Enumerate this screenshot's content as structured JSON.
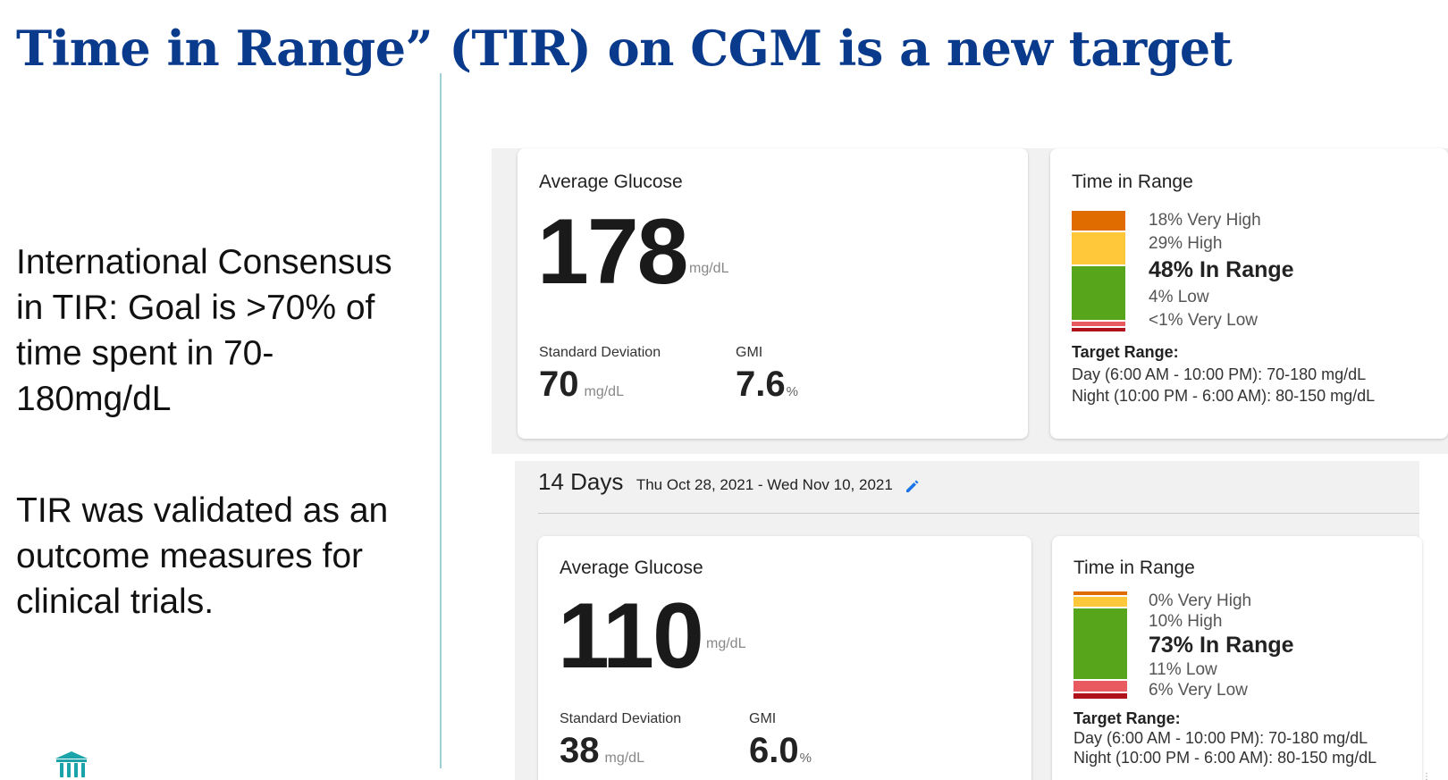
{
  "slide": {
    "title": "Time in Range” (TIR) on CGM is a new target",
    "bullets": [
      "International Consensus in TIR: Goal is >70% of time spent in 70-180mg/dL",
      "TIR was validated as an outcome measures for clinical trials."
    ],
    "logo_icon": "institution-icon"
  },
  "colors": {
    "title": "#0a3a8c",
    "very_high": "#e06c00",
    "high": "#fec83a",
    "in_range": "#57a51a",
    "low": "#e85a5f",
    "very_low": "#b0121b",
    "edit_icon": "#1a73e8"
  },
  "report_top": {
    "avg_card": {
      "title": "Average Glucose",
      "value": "178",
      "unit": "mg/dL",
      "sd_label": "Standard Deviation",
      "sd_value": "70",
      "sd_unit": "mg/dL",
      "gmi_label": "GMI",
      "gmi_value": "7.6",
      "gmi_unit": "%"
    },
    "tir_card": {
      "title": "Time in Range",
      "segments": [
        {
          "key": "very_high",
          "label": "18% Very High",
          "percent": 18
        },
        {
          "key": "high",
          "label": "29% High",
          "percent": 29
        },
        {
          "key": "in_range",
          "label": "48% In Range",
          "percent": 48
        },
        {
          "key": "low",
          "label": "4% Low",
          "percent": 4
        },
        {
          "key": "very_low",
          "label": "<1% Very Low",
          "percent": 1
        }
      ],
      "target_title": "Target Range:",
      "target_day": "Day (6:00 AM - 10:00 PM): 70-180 mg/dL",
      "target_night": "Night (10:00 PM - 6:00 AM): 80-150 mg/dL"
    }
  },
  "date_range": {
    "days": "14 Days",
    "dates": "Thu Oct 28, 2021 - Wed Nov 10, 2021",
    "edit_icon": "pencil-icon"
  },
  "report_bottom": {
    "avg_card": {
      "title": "Average Glucose",
      "value": "110",
      "unit": "mg/dL",
      "sd_label": "Standard Deviation",
      "sd_value": "38",
      "sd_unit": "mg/dL",
      "gmi_label": "GMI",
      "gmi_value": "6.0",
      "gmi_unit": "%"
    },
    "tir_card": {
      "title": "Time in Range",
      "segments": [
        {
          "key": "very_high",
          "label": "0% Very High",
          "percent": 0
        },
        {
          "key": "high",
          "label": "10% High",
          "percent": 10
        },
        {
          "key": "in_range",
          "label": "73% In Range",
          "percent": 73
        },
        {
          "key": "low",
          "label": "11% Low",
          "percent": 11
        },
        {
          "key": "very_low",
          "label": "6% Very Low",
          "percent": 6
        }
      ],
      "target_title": "Target Range:",
      "target_day": "Day (6:00 AM - 10:00 PM): 70-180 mg/dL",
      "target_night": "Night (10:00 PM - 6:00 AM): 80-150 mg/dL"
    }
  }
}
